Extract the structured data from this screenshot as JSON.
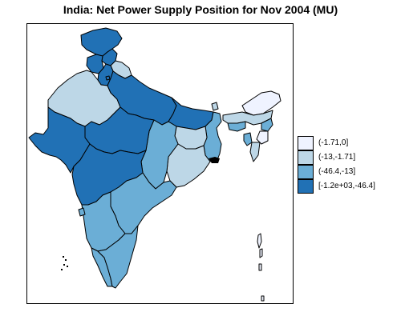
{
  "title": "India: Net Power Supply Position for Nov 2004 (MU)",
  "colors": {
    "c1": "#eff3ff",
    "c2": "#bdd7e7",
    "c3": "#6baed6",
    "c4": "#2171b5"
  },
  "legend": {
    "items": [
      {
        "label": "(-1.71,0]",
        "color": "#eff3ff"
      },
      {
        "label": "(-13,-1.71]",
        "color": "#bdd7e7"
      },
      {
        "label": "(-46.4,-13]",
        "color": "#6baed6"
      },
      {
        "label": "[-1.2e+03,-46.4]",
        "color": "#2171b5"
      }
    ]
  },
  "regions": [
    {
      "name": "jammu-kashmir",
      "class": "c4"
    },
    {
      "name": "himachal-pradesh",
      "class": "c4"
    },
    {
      "name": "punjab",
      "class": "c4"
    },
    {
      "name": "uttaranchal",
      "class": "c2"
    },
    {
      "name": "haryana",
      "class": "c4"
    },
    {
      "name": "delhi",
      "class": "c4"
    },
    {
      "name": "rajasthan",
      "class": "c2"
    },
    {
      "name": "uttar-pradesh",
      "class": "c4"
    },
    {
      "name": "bihar",
      "class": "c4"
    },
    {
      "name": "sikkim",
      "class": "c2"
    },
    {
      "name": "arunachal-pradesh",
      "class": "c1"
    },
    {
      "name": "assam",
      "class": "c2"
    },
    {
      "name": "meghalaya",
      "class": "c3"
    },
    {
      "name": "nagaland",
      "class": "c3"
    },
    {
      "name": "manipur",
      "class": "c1"
    },
    {
      "name": "mizoram",
      "class": "c2"
    },
    {
      "name": "tripura",
      "class": "c3"
    },
    {
      "name": "west-bengal",
      "class": "c3"
    },
    {
      "name": "jharkhand",
      "class": "c2"
    },
    {
      "name": "orissa",
      "class": "c2"
    },
    {
      "name": "chhattisgarh",
      "class": "c3"
    },
    {
      "name": "madhya-pradesh",
      "class": "c4"
    },
    {
      "name": "gujarat",
      "class": "c4"
    },
    {
      "name": "maharashtra",
      "class": "c4"
    },
    {
      "name": "andhra-pradesh",
      "class": "c3"
    },
    {
      "name": "karnataka",
      "class": "c3"
    },
    {
      "name": "goa",
      "class": "c3"
    },
    {
      "name": "kerala",
      "class": "c3"
    },
    {
      "name": "tamil-nadu",
      "class": "c3"
    },
    {
      "name": "andaman-islands",
      "class": "c1"
    }
  ]
}
